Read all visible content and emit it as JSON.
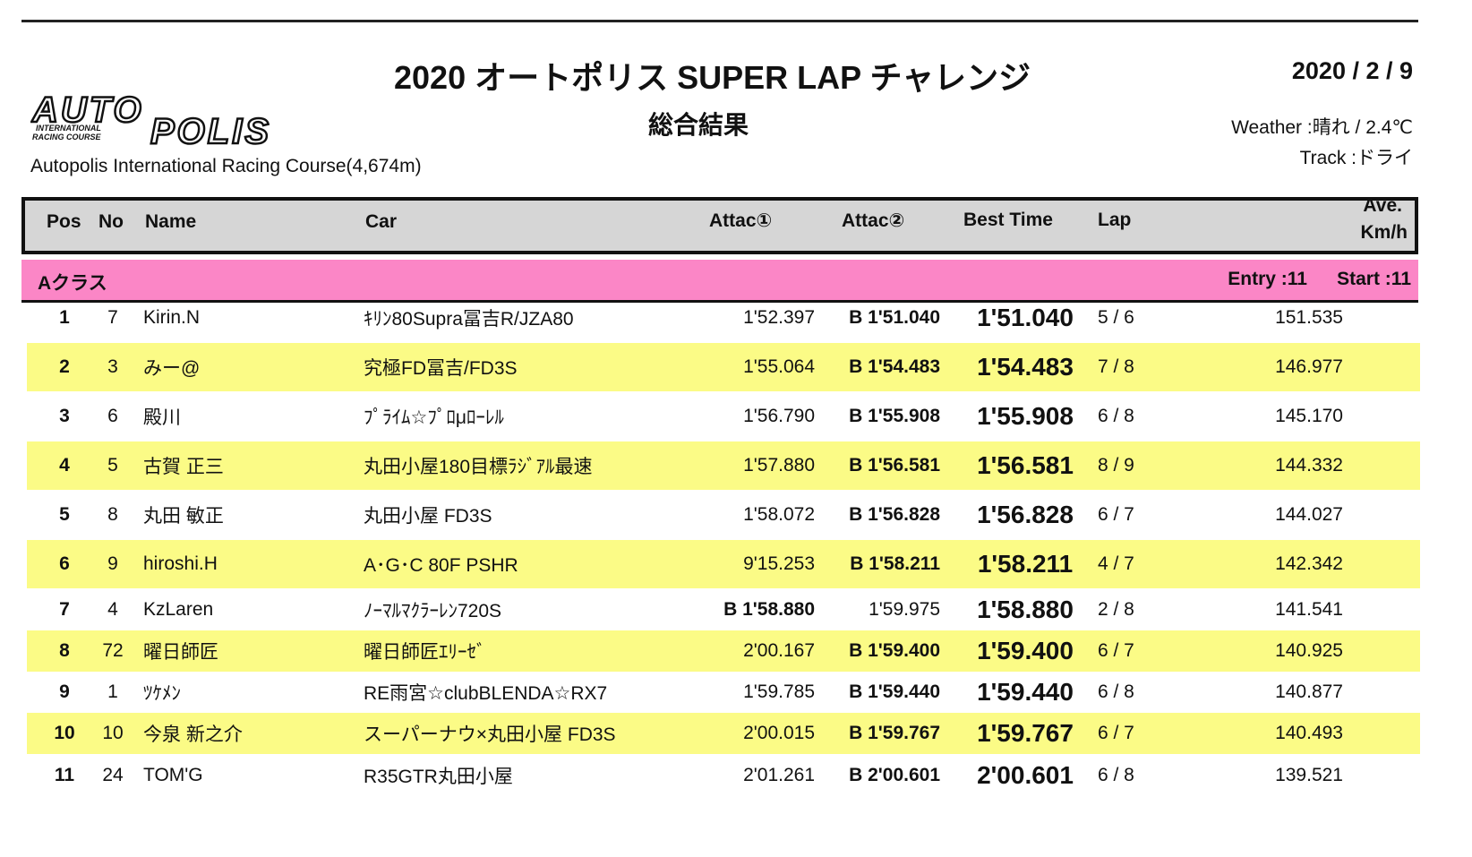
{
  "title": "2020 オートポリス SUPER LAP チャレンジ",
  "subtitle": "総合結果",
  "date": "2020 / 2 / 9",
  "logo_text": "AUTOPOLIS INTERNATIONAL RACING COURSE",
  "course": "Autopolis International  Racing Course(4,674m)",
  "weather": "Weather :晴れ / 2.4℃",
  "track": "Track :ドライ",
  "columns": {
    "pos": "Pos",
    "no": "No",
    "name": "Name",
    "car": "Car",
    "attack1": "Attac①",
    "attack2": "Attac②",
    "best": "Best Time",
    "lap": "Lap",
    "ave1": "Ave.",
    "ave2": "Km/h"
  },
  "class_bar": {
    "name": "Aクラス",
    "entry": "Entry :11",
    "start": "Start :11"
  },
  "colors": {
    "header_bg": "#d6d6d6",
    "class_bg": "#fb86c6",
    "alt_row_bg": "#fbfb86"
  },
  "rows": [
    {
      "pos": "1",
      "no": "7",
      "name": "Kirin.N",
      "car": "ｷﾘﾝ80Supra冨吉R/JZA80",
      "a1": "1'52.397",
      "a2": "B 1'51.040",
      "best": "1'51.040",
      "lap": "5 / 6",
      "ave": "151.535"
    },
    {
      "pos": "2",
      "no": "3",
      "name": "みー@",
      "car": "究極FD冨吉/FD3S",
      "a1": "1'55.064",
      "a2": "B 1'54.483",
      "best": "1'54.483",
      "lap": "7 / 8",
      "ave": "146.977"
    },
    {
      "pos": "3",
      "no": "6",
      "name": "殿川",
      "car": "ﾌﾟﾗｲﾑ☆ﾌﾟﾛμﾛｰﾚﾙ",
      "a1": "1'56.790",
      "a2": "B 1'55.908",
      "best": "1'55.908",
      "lap": "6 / 8",
      "ave": "145.170"
    },
    {
      "pos": "4",
      "no": "5",
      "name": "古賀 正三",
      "car": "丸田小屋180目標ﾗｼﾞｱﾙ最速",
      "a1": "1'57.880",
      "a2": "B 1'56.581",
      "best": "1'56.581",
      "lap": "8 / 9",
      "ave": "144.332"
    },
    {
      "pos": "5",
      "no": "8",
      "name": "丸田 敏正",
      "car": "丸田小屋 FD3S",
      "a1": "1'58.072",
      "a2": "B 1'56.828",
      "best": "1'56.828",
      "lap": "6 / 7",
      "ave": "144.027"
    },
    {
      "pos": "6",
      "no": "9",
      "name": "hiroshi.H",
      "car": "A･G･C 80F PSHR",
      "a1": "9'15.253",
      "a2": "B 1'58.211",
      "best": "1'58.211",
      "lap": "4 / 7",
      "ave": "142.342"
    },
    {
      "pos": "7",
      "no": "4",
      "name": "KzLaren",
      "car": "ﾉｰﾏﾙﾏｸﾗｰﾚﾝ720S",
      "a1": "B 1'58.880",
      "a2": "1'59.975",
      "best": "1'58.880",
      "lap": "2 / 8",
      "ave": "141.541"
    },
    {
      "pos": "8",
      "no": "72",
      "name": "曜日師匠",
      "car": "曜日師匠ｴﾘｰｾﾞ",
      "a1": "2'00.167",
      "a2": "B 1'59.400",
      "best": "1'59.400",
      "lap": "6 / 7",
      "ave": "140.925"
    },
    {
      "pos": "9",
      "no": "1",
      "name": "ﾂｹﾒﾝ",
      "car": "RE雨宮☆clubBLENDA☆RX7",
      "a1": "1'59.785",
      "a2": "B 1'59.440",
      "best": "1'59.440",
      "lap": "6 / 8",
      "ave": "140.877"
    },
    {
      "pos": "10",
      "no": "10",
      "name": "今泉 新之介",
      "car": "スーパーナウ×丸田小屋 FD3S",
      "a1": "2'00.015",
      "a2": "B 1'59.767",
      "best": "1'59.767",
      "lap": "6 / 7",
      "ave": "140.493"
    },
    {
      "pos": "11",
      "no": "24",
      "name": "TOM'G",
      "car": "R35GTR丸田小屋",
      "a1": "2'01.261",
      "a2": "B 2'00.601",
      "best": "2'00.601",
      "lap": "6 / 8",
      "ave": "139.521"
    }
  ]
}
